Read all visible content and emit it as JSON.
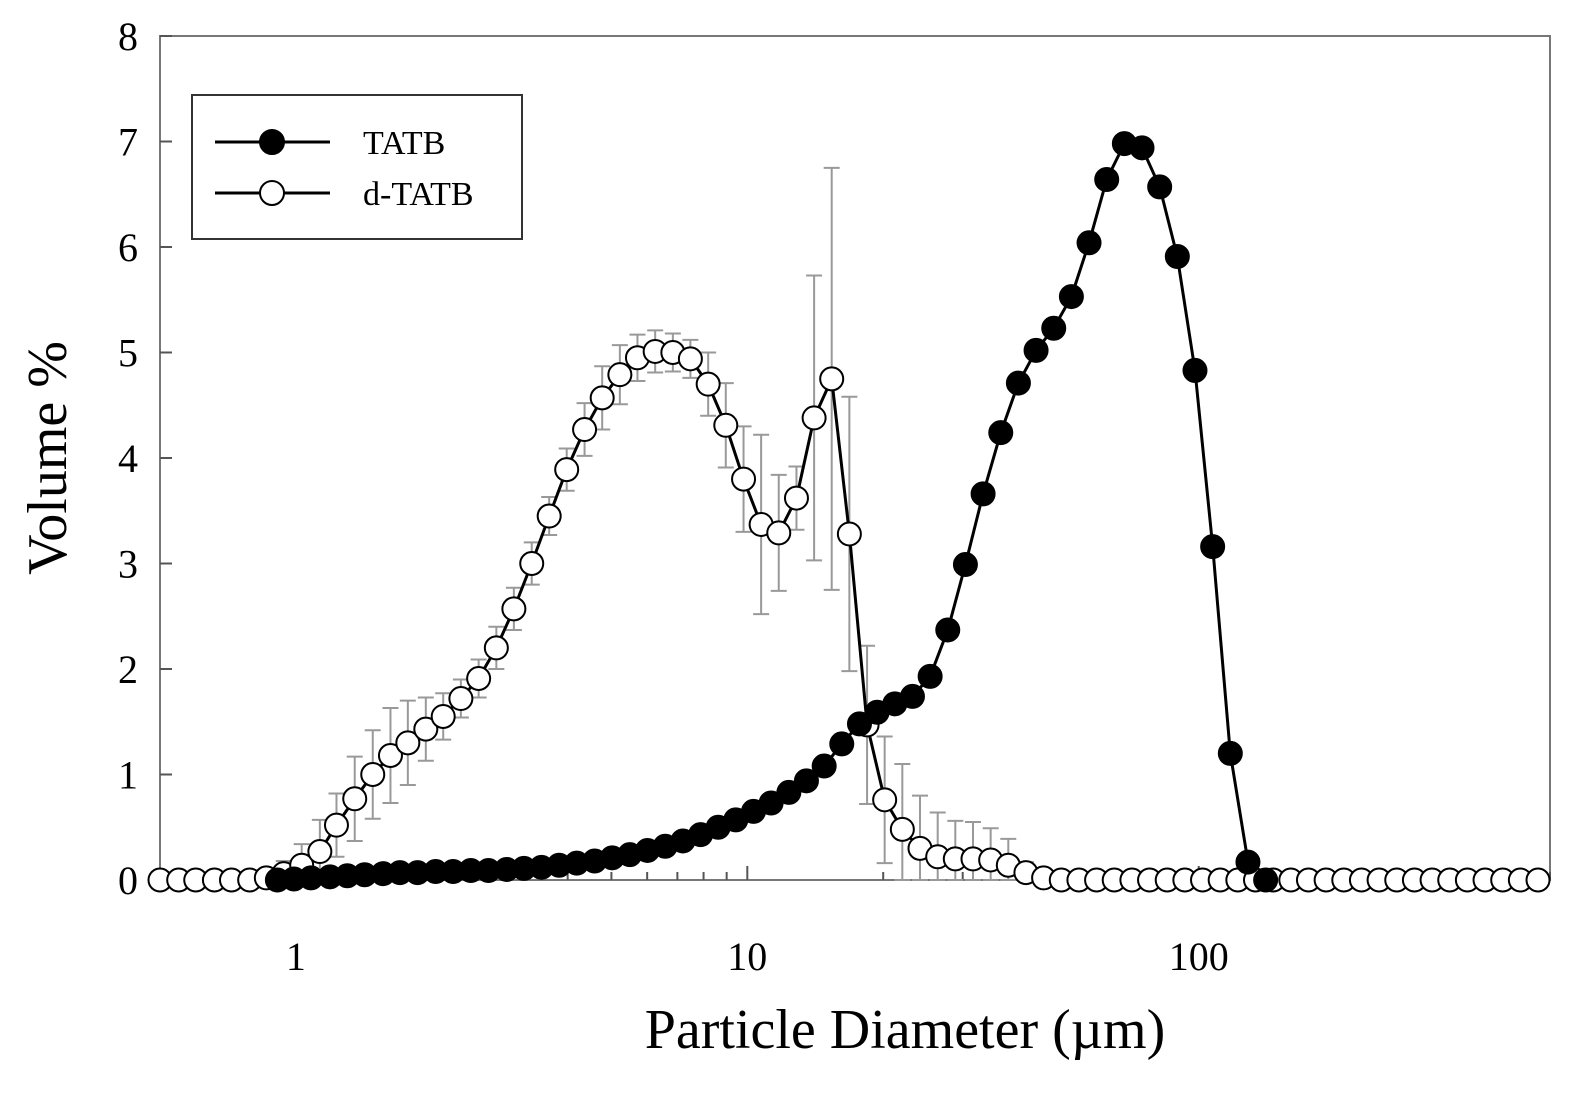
{
  "chart_data": {
    "type": "scatter",
    "x_scale": "log",
    "xlabel": "Particle Diameter (µm)",
    "ylabel": "Volume %",
    "xlim": [
      0.5,
      600
    ],
    "ylim": [
      0,
      8
    ],
    "x_ticks": [
      1,
      10,
      100
    ],
    "x_tick_labels": [
      "1",
      "10",
      "100"
    ],
    "y_ticks": [
      0,
      1,
      2,
      3,
      4,
      5,
      6,
      7,
      8
    ],
    "y_tick_labels": [
      "0",
      "1",
      "2",
      "3",
      "4",
      "5",
      "6",
      "7",
      "8"
    ],
    "grid": false,
    "legend": "top-left",
    "series": [
      {
        "name": "TATB",
        "marker": "filled-circle",
        "color": "#000000",
        "x": [
          0.91,
          0.99,
          1.08,
          1.19,
          1.3,
          1.42,
          1.56,
          1.7,
          1.86,
          2.04,
          2.23,
          2.44,
          2.67,
          2.93,
          3.2,
          3.5,
          3.83,
          4.19,
          4.59,
          5.02,
          5.49,
          6.01,
          6.58,
          7.2,
          7.88,
          8.62,
          9.43,
          10.32,
          11.29,
          12.36,
          13.52,
          14.8,
          16.19,
          17.72,
          19.39,
          21.22,
          23.22,
          25.41,
          27.8,
          30.42,
          33.29,
          36.43,
          39.86,
          43.62,
          47.73,
          52.23,
          57.15,
          62.54,
          68.43,
          74.88,
          81.94,
          89.66,
          98.11,
          107.36,
          117.48,
          128.55,
          140.67
        ],
        "values": [
          0.0,
          0.01,
          0.02,
          0.03,
          0.04,
          0.05,
          0.06,
          0.07,
          0.07,
          0.08,
          0.08,
          0.09,
          0.09,
          0.1,
          0.11,
          0.12,
          0.14,
          0.16,
          0.18,
          0.21,
          0.24,
          0.28,
          0.32,
          0.37,
          0.43,
          0.5,
          0.57,
          0.65,
          0.73,
          0.83,
          0.94,
          1.08,
          1.29,
          1.48,
          1.59,
          1.67,
          1.74,
          1.93,
          2.37,
          2.99,
          3.66,
          4.24,
          4.71,
          5.02,
          5.23,
          5.53,
          6.04,
          6.64,
          6.98,
          6.94,
          6.57,
          5.91,
          4.83,
          3.16,
          1.2,
          0.17,
          0.0
        ]
      },
      {
        "name": "d-TATB",
        "marker": "open-circle",
        "color": "#000000",
        "x": [
          0.5,
          0.55,
          0.6,
          0.66,
          0.72,
          0.79,
          0.86,
          0.94,
          1.03,
          1.13,
          1.23,
          1.35,
          1.48,
          1.62,
          1.77,
          1.94,
          2.12,
          2.32,
          2.54,
          2.78,
          3.04,
          3.33,
          3.64,
          3.98,
          4.36,
          4.77,
          5.22,
          5.71,
          6.25,
          6.84,
          7.48,
          8.19,
          8.96,
          9.81,
          10.73,
          11.74,
          12.85,
          14.06,
          15.38,
          16.83,
          18.42,
          20.15,
          22.05,
          24.13,
          26.41,
          28.89,
          31.62,
          34.6,
          37.86,
          41.42,
          45.33,
          49.6,
          54.27,
          59.39,
          64.98,
          71.11,
          77.81,
          85.15,
          93.17,
          101.95,
          111.56,
          122.07,
          133.58,
          146.17,
          159.95,
          175.02,
          191.52,
          209.57,
          229.32,
          250.93,
          274.58,
          300.46,
          328.78,
          359.77,
          393.67,
          430.78,
          471.38,
          515.81,
          564.42
        ],
        "values": [
          0.0,
          0.0,
          0.0,
          0.0,
          0.0,
          0.0,
          0.02,
          0.06,
          0.14,
          0.27,
          0.52,
          0.77,
          1.0,
          1.18,
          1.3,
          1.43,
          1.55,
          1.72,
          1.91,
          2.2,
          2.57,
          3.0,
          3.45,
          3.89,
          4.27,
          4.57,
          4.79,
          4.95,
          5.01,
          5.0,
          4.94,
          4.7,
          4.31,
          3.8,
          3.37,
          3.29,
          3.62,
          4.38,
          4.75,
          3.28,
          1.47,
          0.76,
          0.48,
          0.3,
          0.22,
          0.2,
          0.2,
          0.19,
          0.14,
          0.07,
          0.02,
          0.0,
          0.0,
          0.0,
          0.0,
          0.0,
          0.0,
          0.0,
          0.0,
          0.0,
          0.0,
          0.0,
          0.0,
          0.0,
          0.0,
          0.0,
          0.0,
          0.0,
          0.0,
          0.0,
          0.0,
          0.0,
          0.0,
          0.0,
          0.0,
          0.0,
          0.0,
          0.0,
          0.0
        ],
        "error": [
          0.0,
          0.0,
          0.0,
          0.0,
          0.0,
          0.0,
          0.05,
          0.12,
          0.2,
          0.3,
          0.3,
          0.4,
          0.42,
          0.45,
          0.4,
          0.3,
          0.22,
          0.18,
          0.18,
          0.2,
          0.2,
          0.2,
          0.18,
          0.2,
          0.25,
          0.3,
          0.28,
          0.22,
          0.2,
          0.18,
          0.18,
          0.3,
          0.4,
          0.5,
          0.85,
          0.55,
          0.3,
          1.35,
          2.0,
          1.3,
          0.75,
          0.6,
          0.62,
          0.5,
          0.42,
          0.36,
          0.35,
          0.3,
          0.25,
          0.1,
          0.05,
          0.0,
          0.0,
          0.0,
          0.0,
          0.0,
          0.0,
          0.0,
          0.0,
          0.0,
          0.0,
          0.0,
          0.0,
          0.0,
          0.0,
          0.0,
          0.0,
          0.0,
          0.0,
          0.0,
          0.0,
          0.0,
          0.0,
          0.0,
          0.0,
          0.0,
          0.0,
          0.0,
          0.0
        ]
      }
    ]
  }
}
